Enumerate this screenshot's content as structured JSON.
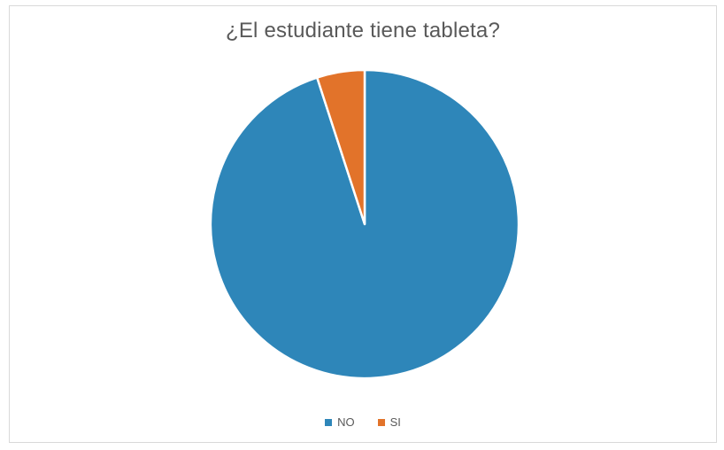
{
  "chart_data": {
    "type": "pie",
    "title": "¿El estudiante tiene tableta?",
    "series": [
      {
        "name": "NO",
        "value": 95,
        "color": "#2e86b9"
      },
      {
        "name": "SI",
        "value": 5,
        "color": "#e2732a"
      }
    ],
    "legend_position": "bottom"
  }
}
